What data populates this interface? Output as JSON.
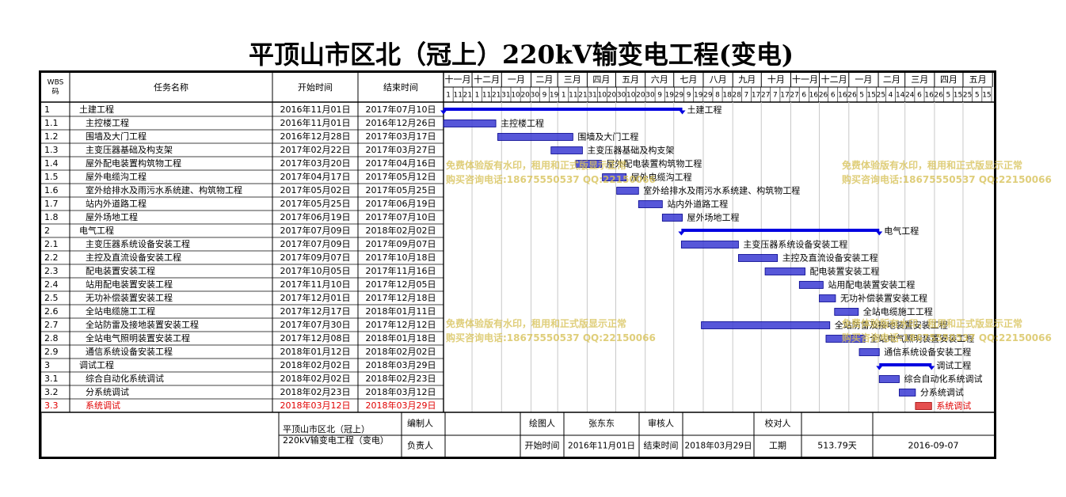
{
  "title": "平顶山市区北（冠上）220kV输变电工程(变电)",
  "table_headers": {
    "wbs": "WBS码",
    "name": "任务名称",
    "start": "开始时间",
    "end": "结束时间"
  },
  "chart_data": {
    "type": "gantt",
    "timeline_start": "2016-11-01",
    "timeline_end": "2018-05-31",
    "months": [
      "十一月",
      "十二月",
      "一月",
      "二月",
      "三月",
      "四月",
      "五月",
      "六月",
      "七月",
      "八月",
      "九月",
      "十月",
      "十一月",
      "十二月",
      "一月",
      "二月",
      "三月",
      "四月",
      "五月"
    ],
    "day_ticks": [
      "1",
      "11",
      "21",
      "1",
      "11",
      "21",
      "31",
      "10",
      "20",
      "30",
      "9",
      "19",
      "1",
      "11",
      "21",
      "31",
      "10",
      "20",
      "30",
      "10",
      "20",
      "30",
      "9",
      "19",
      "29",
      "9",
      "19",
      "29",
      "8",
      "18",
      "28",
      "7",
      "17",
      "27",
      "7",
      "17",
      "27",
      "6",
      "16",
      "26",
      "6",
      "16",
      "26",
      "5",
      "15",
      "25",
      "4",
      "14",
      "24",
      "6",
      "16",
      "26",
      "5",
      "15",
      "25",
      "5",
      "15"
    ],
    "tasks": [
      {
        "wbs": "1",
        "name": "土建工程",
        "start": "2016年11月01日",
        "end": "2017年07月10日",
        "s": "2016-11-01",
        "e": "2017-07-10",
        "summary": true,
        "level": 0
      },
      {
        "wbs": "1.1",
        "name": "主控楼工程",
        "start": "2016年11月01日",
        "end": "2016年12月26日",
        "s": "2016-11-01",
        "e": "2016-12-26",
        "level": 1
      },
      {
        "wbs": "1.2",
        "name": "围墙及大门工程",
        "start": "2016年12月28日",
        "end": "2017年03月17日",
        "s": "2016-12-28",
        "e": "2017-03-17",
        "level": 1
      },
      {
        "wbs": "1.3",
        "name": "主变压器基础及构支架",
        "start": "2017年02月22日",
        "end": "2017年03月27日",
        "s": "2017-02-22",
        "e": "2017-03-27",
        "level": 1
      },
      {
        "wbs": "1.4",
        "name": "屋外配电装置构筑物工程",
        "start": "2017年03月20日",
        "end": "2017年04月16日",
        "s": "2017-03-20",
        "e": "2017-04-16",
        "level": 1
      },
      {
        "wbs": "1.5",
        "name": "屋外电缆沟工程",
        "start": "2017年04月17日",
        "end": "2017年05月12日",
        "s": "2017-04-17",
        "e": "2017-05-12",
        "level": 1
      },
      {
        "wbs": "1.6",
        "name": "室外给排水及雨污水系统建、构筑物工程",
        "start": "2017年05月02日",
        "end": "2017年05月25日",
        "s": "2017-05-02",
        "e": "2017-05-25",
        "level": 1
      },
      {
        "wbs": "1.7",
        "name": "站内外道路工程",
        "start": "2017年05月25日",
        "end": "2017年06月19日",
        "s": "2017-05-25",
        "e": "2017-06-19",
        "level": 1
      },
      {
        "wbs": "1.8",
        "name": "屋外场地工程",
        "start": "2017年06月19日",
        "end": "2017年07月10日",
        "s": "2017-06-19",
        "e": "2017-07-10",
        "level": 1
      },
      {
        "wbs": "2",
        "name": "电气工程",
        "start": "2017年07月09日",
        "end": "2018年02月02日",
        "s": "2017-07-09",
        "e": "2018-02-02",
        "summary": true,
        "level": 0
      },
      {
        "wbs": "2.1",
        "name": "主变压器系统设备安装工程",
        "start": "2017年07月09日",
        "end": "2017年09月07日",
        "s": "2017-07-09",
        "e": "2017-09-07",
        "level": 1
      },
      {
        "wbs": "2.2",
        "name": "主控及直流设备安装工程",
        "start": "2017年09月07日",
        "end": "2017年10月18日",
        "s": "2017-09-07",
        "e": "2017-10-18",
        "level": 1
      },
      {
        "wbs": "2.3",
        "name": "配电装置安装工程",
        "start": "2017年10月05日",
        "end": "2017年11月16日",
        "s": "2017-10-05",
        "e": "2017-11-16",
        "level": 1
      },
      {
        "wbs": "2.4",
        "name": "站用配电装置安装工程",
        "start": "2017年11月10日",
        "end": "2017年12月05日",
        "s": "2017-11-10",
        "e": "2017-12-05",
        "level": 1
      },
      {
        "wbs": "2.5",
        "name": "无功补偿装置安装工程",
        "start": "2017年12月01日",
        "end": "2017年12月18日",
        "s": "2017-12-01",
        "e": "2017-12-18",
        "level": 1
      },
      {
        "wbs": "2.6",
        "name": "全站电缆施工工程",
        "start": "2017年12月17日",
        "end": "2018年01月11日",
        "s": "2017-12-17",
        "e": "2018-01-11",
        "level": 1
      },
      {
        "wbs": "2.7",
        "name": "全站防雷及接地装置安装工程",
        "start": "2017年07月30日",
        "end": "2017年12月12日",
        "s": "2017-07-30",
        "e": "2017-12-12",
        "level": 1
      },
      {
        "wbs": "2.8",
        "name": "全站电气照明装置安装工程",
        "start": "2017年12月08日",
        "end": "2018年01月18日",
        "s": "2017-12-08",
        "e": "2018-01-18",
        "level": 1
      },
      {
        "wbs": "2.9",
        "name": "通信系统设备安装工程",
        "start": "2018年01月12日",
        "end": "2018年02月02日",
        "s": "2018-01-12",
        "e": "2018-02-02",
        "level": 1
      },
      {
        "wbs": "3",
        "name": "调试工程",
        "start": "2018年02月02日",
        "end": "2018年03月29日",
        "s": "2018-02-02",
        "e": "2018-03-29",
        "summary": true,
        "level": 0
      },
      {
        "wbs": "3.1",
        "name": "综合自动化系统调试",
        "start": "2018年02月02日",
        "end": "2018年02月23日",
        "s": "2018-02-02",
        "e": "2018-02-23",
        "level": 1
      },
      {
        "wbs": "3.2",
        "name": "分系统调试",
        "start": "2018年02月23日",
        "end": "2018年03月12日",
        "s": "2018-02-23",
        "e": "2018-03-12",
        "level": 1
      },
      {
        "wbs": "3.3",
        "name": "系统调试",
        "start": "2018年03月12日",
        "end": "2018年03月29日",
        "s": "2018-03-12",
        "e": "2018-03-29",
        "level": 1,
        "critical": true
      }
    ]
  },
  "footer": {
    "project_name": "平顶山市区北（冠上）220kV输变电工程（变电）",
    "editor_label": "编制人",
    "editor": "",
    "drawer_label": "绘图人",
    "drawer": "张东东",
    "reviewer_label": "审核人",
    "reviewer": "",
    "checker_label": "校对人",
    "checker": "",
    "owner_label": "负责人",
    "owner": "",
    "start_label": "开始时间",
    "start_value": "2016年11月01日",
    "end_label": "结束时间",
    "end_value": "2018年03月29日",
    "duration_label": "工期",
    "duration_value": "513.79天",
    "date_value": "2016-09-07"
  },
  "watermark": {
    "line1": "免费体验版有水印，租用和正式版显示正常",
    "line2": "购买咨询电话:18675550537 QQ:22150066"
  },
  "colors": {
    "bar_fill": "#3a3ad2",
    "summary": "#0000e0",
    "critical": "#e03030",
    "text": "#000000",
    "critical_text": "#e00000",
    "grid": "#c8c8c8",
    "watermark": "#d8c25a"
  }
}
